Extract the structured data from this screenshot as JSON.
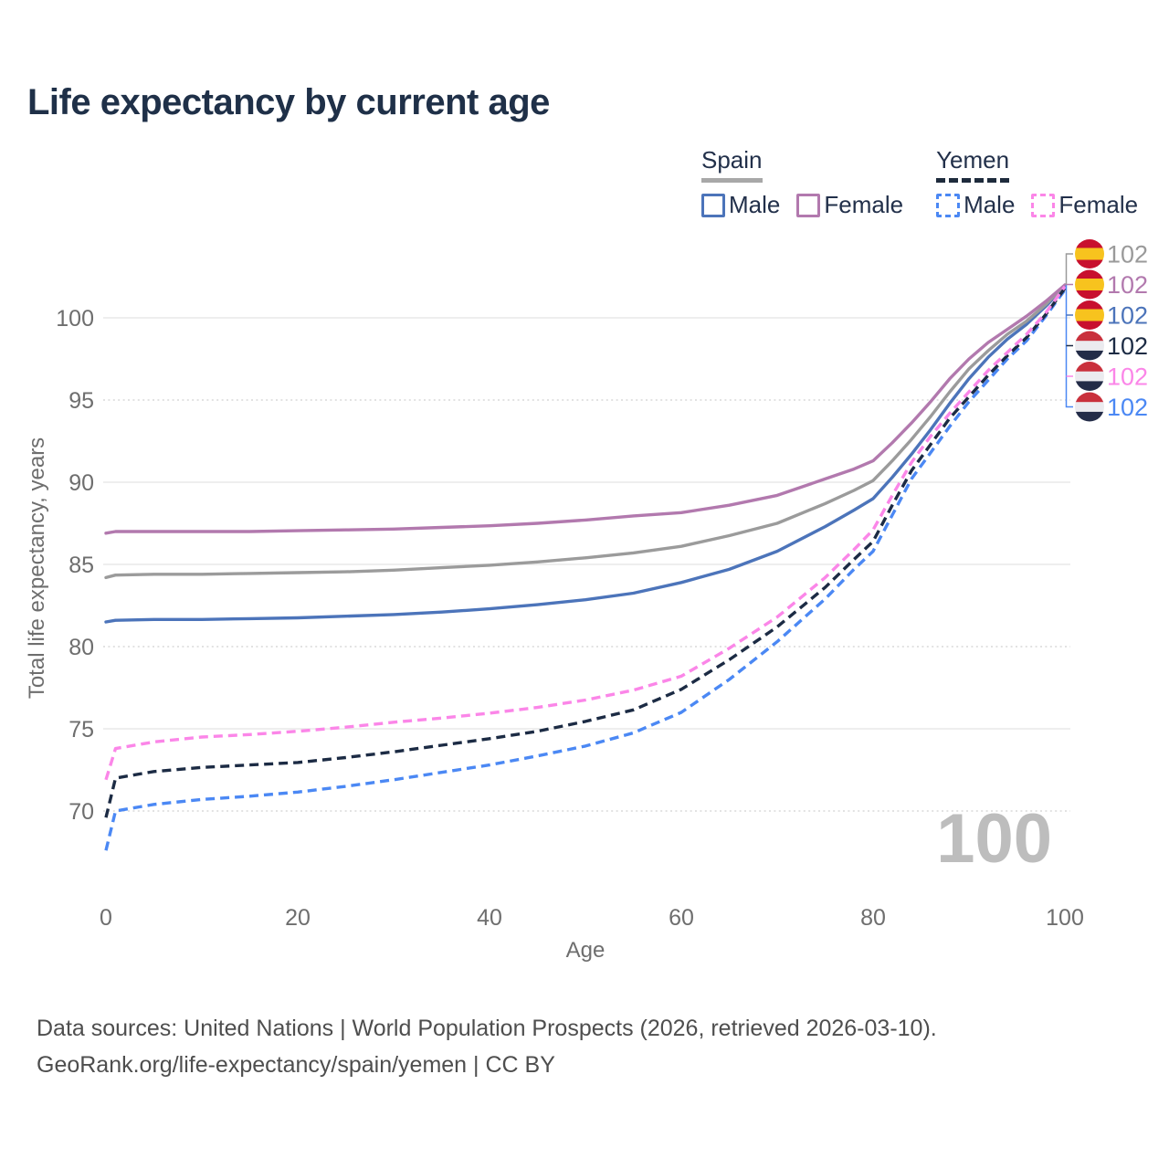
{
  "title": "Life expectancy by current age",
  "watermark": "100",
  "legend": {
    "groups": [
      {
        "country": "Spain",
        "line_style": "solid",
        "underline_color": "#a8a8a8",
        "items": [
          {
            "label": "Male",
            "color": "#4c74ba",
            "dashed": false
          },
          {
            "label": "Female",
            "color": "#b279ae",
            "dashed": false
          }
        ]
      },
      {
        "country": "Yemen",
        "line_style": "dashed",
        "underline_color": "#1e2b3c",
        "items": [
          {
            "label": "Male",
            "color": "#4b88f4",
            "dashed": true
          },
          {
            "label": "Female",
            "color": "#fb86e8",
            "dashed": true
          }
        ]
      }
    ]
  },
  "footer": {
    "line1": "Data sources: United Nations | World Population Prospects (2026, retrieved 2026-03-10).",
    "line2": "GeoRank.org/life-expectancy/spain/yemen | CC BY"
  },
  "chart_data": {
    "type": "line",
    "title": "Life expectancy by current age",
    "xlabel": "Age",
    "ylabel": "Total life expectancy, years",
    "xlim": [
      0,
      100
    ],
    "ylim": [
      66,
      103
    ],
    "xticks": [
      0,
      20,
      40,
      60,
      80,
      100
    ],
    "yticks": [
      70,
      75,
      80,
      85,
      90,
      95,
      100
    ],
    "dotted_gridlines": [
      70,
      80,
      95
    ],
    "grid": "horizontal",
    "legend_position": "top-right",
    "ages": [
      0,
      1,
      5,
      10,
      15,
      20,
      25,
      30,
      35,
      40,
      45,
      50,
      55,
      60,
      65,
      70,
      75,
      78,
      80,
      82,
      84,
      86,
      88,
      90,
      92,
      94,
      96,
      98,
      100
    ],
    "series": [
      {
        "name": "Spain Male",
        "country": "Spain",
        "sex": "Male",
        "style": "solid",
        "color": "#4c74ba",
        "values": [
          81.5,
          81.6,
          81.65,
          81.65,
          81.7,
          81.75,
          81.85,
          81.95,
          82.1,
          82.3,
          82.55,
          82.85,
          83.25,
          83.9,
          84.7,
          85.8,
          87.3,
          88.3,
          89.0,
          90.3,
          91.7,
          93.2,
          94.8,
          96.3,
          97.6,
          98.7,
          99.6,
          100.7,
          101.9
        ]
      },
      {
        "name": "Spain",
        "country": "Spain",
        "sex": "Both",
        "style": "solid",
        "color": "#9b9b9b",
        "values": [
          84.2,
          84.35,
          84.4,
          84.4,
          84.45,
          84.5,
          84.55,
          84.65,
          84.8,
          84.95,
          85.15,
          85.4,
          85.7,
          86.1,
          86.75,
          87.5,
          88.7,
          89.5,
          90.1,
          91.3,
          92.6,
          94.0,
          95.5,
          96.9,
          98.0,
          99.0,
          99.8,
          100.8,
          102.0
        ]
      },
      {
        "name": "Spain Female",
        "country": "Spain",
        "sex": "Female",
        "style": "solid",
        "color": "#b279ae",
        "values": [
          86.9,
          87.0,
          87.0,
          87.0,
          87.0,
          87.05,
          87.1,
          87.15,
          87.25,
          87.35,
          87.5,
          87.7,
          87.95,
          88.15,
          88.6,
          89.2,
          90.2,
          90.8,
          91.3,
          92.4,
          93.6,
          94.9,
          96.3,
          97.5,
          98.5,
          99.3,
          100.1,
          101.0,
          102.0
        ]
      },
      {
        "name": "Yemen Male",
        "country": "Yemen",
        "sex": "Male",
        "style": "dashed",
        "color": "#4b88f4",
        "values": [
          67.6,
          70.0,
          70.4,
          70.7,
          70.9,
          71.15,
          71.5,
          71.9,
          72.35,
          72.8,
          73.35,
          73.95,
          74.75,
          76.0,
          78.0,
          80.3,
          82.9,
          84.7,
          85.8,
          88.0,
          90.2,
          91.8,
          93.4,
          94.9,
          96.2,
          97.5,
          98.6,
          100.1,
          101.7
        ]
      },
      {
        "name": "Yemen",
        "country": "Yemen",
        "sex": "Both",
        "style": "dashed",
        "color": "#1c2b44",
        "values": [
          69.6,
          72.0,
          72.4,
          72.65,
          72.8,
          72.95,
          73.25,
          73.6,
          74.0,
          74.4,
          74.85,
          75.45,
          76.15,
          77.4,
          79.2,
          81.2,
          83.6,
          85.3,
          86.4,
          88.6,
          90.7,
          92.3,
          93.9,
          95.2,
          96.5,
          97.7,
          98.8,
          100.2,
          101.8
        ]
      },
      {
        "name": "Yemen Female",
        "country": "Yemen",
        "sex": "Female",
        "style": "dashed",
        "color": "#fb86e8",
        "values": [
          71.9,
          73.8,
          74.2,
          74.5,
          74.65,
          74.85,
          75.1,
          75.4,
          75.65,
          75.95,
          76.3,
          76.75,
          77.35,
          78.2,
          79.9,
          81.8,
          84.2,
          85.9,
          87.1,
          89.2,
          91.2,
          92.8,
          94.2,
          95.5,
          96.8,
          97.9,
          99.0,
          100.3,
          101.9
        ]
      }
    ],
    "end_labels": [
      {
        "series": "Spain",
        "flag": "spain",
        "value": "102",
        "color": "#9a9a9a"
      },
      {
        "series": "Spain Female",
        "flag": "spain",
        "value": "102",
        "color": "#b279ae"
      },
      {
        "series": "Spain Male",
        "flag": "spain",
        "value": "102",
        "color": "#4c74ba"
      },
      {
        "series": "Yemen",
        "flag": "yemen",
        "value": "102",
        "color": "#1c2b44"
      },
      {
        "series": "Yemen Female",
        "flag": "yemen",
        "value": "102",
        "color": "#fb86e8"
      },
      {
        "series": "Yemen Male",
        "flag": "yemen",
        "value": "102",
        "color": "#4b88f4"
      }
    ],
    "flag_colors": {
      "spain": [
        "#c8102e",
        "#f7c31e",
        "#c8102e"
      ],
      "yemen": [
        "#c9303c",
        "#ebebef",
        "#232c48"
      ]
    }
  }
}
